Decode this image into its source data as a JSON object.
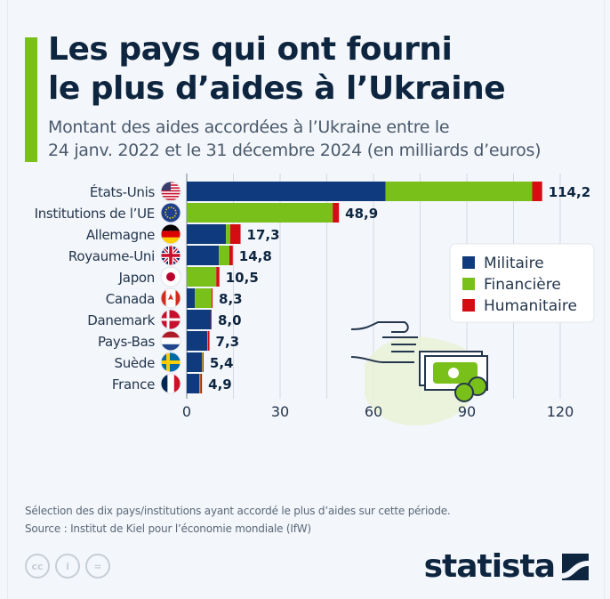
{
  "header": {
    "title_line1": "Les pays qui ont fourni",
    "title_line2": "le plus d’aides à l’Ukraine",
    "subtitle_line1": "Montant des aides accordées à l’Ukraine entre le",
    "subtitle_line2": "24 janv. 2022 et le 31 décembre 2024 (en milliards d’euros)"
  },
  "colors": {
    "military": "#0f3a7d",
    "financial": "#7ac01a",
    "humanitarian": "#d40d12",
    "accent": "#7ac01a",
    "text_dark": "#0e2540"
  },
  "chart_data": {
    "type": "bar",
    "orientation": "horizontal",
    "stacked": true,
    "title": "Les pays qui ont fourni le plus d’aides à l’Ukraine",
    "subtitle": "Montant des aides accordées à l’Ukraine entre le 24 janv. 2022 et le 31 décembre 2024 (en milliards d’euros)",
    "categories": [
      "États-Unis",
      "Institutions de l’UE",
      "Allemagne",
      "Royaume-Uni",
      "Japon",
      "Canada",
      "Danemark",
      "Pays-Bas",
      "Suède",
      "France"
    ],
    "flags": [
      "flag-us",
      "flag-eu",
      "flag-de",
      "flag-gb",
      "flag-jp",
      "flag-ca",
      "flag-dk",
      "flag-nl",
      "flag-se",
      "flag-fr"
    ],
    "series": [
      {
        "name": "Militaire",
        "color": "#0f3a7d",
        "values": [
          63.9,
          0,
          12.6,
          10.3,
          0,
          2.6,
          7.8,
          6.6,
          4.9,
          4.0
        ]
      },
      {
        "name": "Financière",
        "color": "#7ac01a",
        "values": [
          47.1,
          46.9,
          1.4,
          3.4,
          9.5,
          5.4,
          0,
          0.2,
          0.2,
          0.4
        ]
      },
      {
        "name": "Humanitaire",
        "color": "#d40d12",
        "values": [
          3.2,
          2.0,
          3.3,
          1.1,
          1.0,
          0.3,
          0.2,
          0.5,
          0.3,
          0.5
        ]
      }
    ],
    "totals": [
      114.2,
      48.9,
      17.3,
      14.8,
      10.5,
      8.3,
      8.0,
      7.3,
      5.4,
      4.9
    ],
    "total_labels": [
      "114,2",
      "48,9",
      "17,3",
      "14,8",
      "10,5",
      "8,3",
      "8,0",
      "7,3",
      "5,4",
      "4,9"
    ],
    "xlim": [
      0,
      120
    ],
    "xticks": [
      0,
      30,
      60,
      90,
      120
    ],
    "minor_gridlines_every": 15,
    "grid": true,
    "legend_position": "right",
    "xlabel": "",
    "ylabel": ""
  },
  "footer": {
    "note": "Sélection des dix pays/institutions ayant accordé le plus d’aides sur cette période.",
    "source": "Source : Institut de Kiel pour l’économie mondiale (IfW)",
    "license_icons": [
      "cc-icon",
      "by-icon",
      "nd-icon"
    ],
    "license_labels": [
      "cc",
      "i",
      "="
    ],
    "brand": "statista"
  }
}
